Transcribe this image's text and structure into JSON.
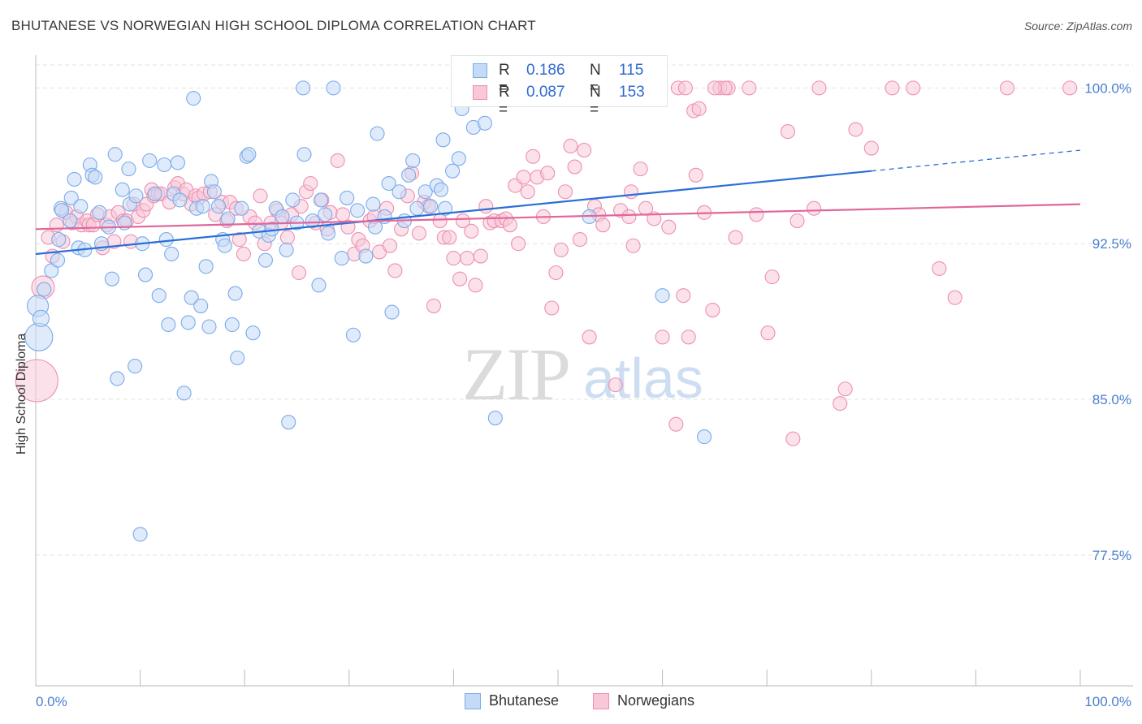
{
  "title": "BHUTANESE VS NORWEGIAN HIGH SCHOOL DIPLOMA CORRELATION CHART",
  "source": "Source: ZipAtlas.com",
  "watermark": {
    "zip": "ZIP",
    "atlas": "atlas"
  },
  "stats": [
    {
      "r_label": "R =",
      "r_value": "0.186",
      "n_label": "N =",
      "n_value": "115",
      "color": "#7aabea",
      "fill": "#c5daf5"
    },
    {
      "r_label": "R =",
      "r_value": "0.087",
      "n_label": "N =",
      "n_value": "153",
      "color": "#ee8fb0",
      "fill": "#f8c8d8"
    }
  ],
  "legend": [
    {
      "label": "Bhutanese",
      "color": "#7aabea",
      "fill": "#c5daf5"
    },
    {
      "label": "Norwegians",
      "color": "#ee8fb0",
      "fill": "#f8c8d8"
    }
  ],
  "chart_data": {
    "type": "scatter",
    "title": "BHUTANESE VS NORWEGIAN HIGH SCHOOL DIPLOMA CORRELATION CHART",
    "xlabel": "",
    "ylabel": "High School Diploma",
    "xlim": [
      0,
      100
    ],
    "ylim": [
      71.2,
      101.5
    ],
    "x_tick_labels": [
      "0.0%",
      "100.0%"
    ],
    "y_ticks": [
      77.5,
      85.0,
      92.5,
      100.0
    ],
    "y_tick_labels": [
      "77.5%",
      "85.0%",
      "92.5%",
      "100.0%"
    ],
    "grid": true,
    "legend_position": "bottom-center",
    "series": [
      {
        "name": "Bhutanese",
        "color": "#2b6fd6",
        "marker_fill": "#c5daf5",
        "marker_stroke": "#7aabea",
        "trend": {
          "x0": 0,
          "y0": 92.0,
          "x1": 80,
          "y1": 96.0,
          "dashed_to_x": 100,
          "dashed_to_y": 97.0
        },
        "points": [
          [
            0.2,
            89.5
          ],
          [
            0.3,
            88.0
          ],
          [
            0.5,
            88.9
          ],
          [
            0.8,
            90.3
          ],
          [
            1.5,
            91.2
          ],
          [
            2.1,
            91.7
          ],
          [
            2.2,
            92.7
          ],
          [
            2.4,
            94.2
          ],
          [
            2.5,
            94.1
          ],
          [
            3.3,
            93.6
          ],
          [
            3.4,
            94.7
          ],
          [
            3.7,
            95.6
          ],
          [
            4.1,
            92.3
          ],
          [
            4.3,
            94.3
          ],
          [
            4.7,
            92.2
          ],
          [
            5.2,
            96.3
          ],
          [
            5.4,
            95.8
          ],
          [
            5.7,
            95.7
          ],
          [
            6.1,
            94.0
          ],
          [
            6.3,
            92.5
          ],
          [
            7.0,
            93.3
          ],
          [
            7.3,
            90.8
          ],
          [
            7.6,
            96.8
          ],
          [
            7.8,
            86.0
          ],
          [
            8.3,
            95.1
          ],
          [
            8.9,
            96.1
          ],
          [
            8.5,
            93.5
          ],
          [
            9.0,
            94.4
          ],
          [
            9.6,
            94.8
          ],
          [
            10.0,
            78.5
          ],
          [
            9.5,
            86.6
          ],
          [
            10.2,
            92.5
          ],
          [
            10.5,
            91.0
          ],
          [
            10.9,
            96.5
          ],
          [
            11.4,
            94.9
          ],
          [
            11.8,
            90.0
          ],
          [
            12.3,
            96.3
          ],
          [
            12.5,
            92.7
          ],
          [
            12.7,
            88.6
          ],
          [
            13.0,
            92.0
          ],
          [
            13.2,
            94.9
          ],
          [
            13.6,
            96.4
          ],
          [
            13.8,
            94.6
          ],
          [
            14.2,
            85.3
          ],
          [
            14.6,
            88.7
          ],
          [
            14.9,
            89.9
          ],
          [
            15.1,
            99.5
          ],
          [
            15.4,
            94.2
          ],
          [
            15.8,
            89.5
          ],
          [
            16.0,
            94.3
          ],
          [
            16.3,
            91.4
          ],
          [
            16.6,
            88.5
          ],
          [
            16.8,
            95.5
          ],
          [
            17.1,
            95.0
          ],
          [
            17.5,
            94.3
          ],
          [
            17.9,
            92.7
          ],
          [
            18.1,
            92.4
          ],
          [
            18.4,
            93.7
          ],
          [
            18.8,
            88.6
          ],
          [
            19.1,
            90.1
          ],
          [
            19.3,
            87.0
          ],
          [
            19.7,
            94.2
          ],
          [
            20.2,
            96.7
          ],
          [
            20.4,
            96.8
          ],
          [
            20.8,
            88.2
          ],
          [
            21.4,
            93.1
          ],
          [
            22.0,
            91.7
          ],
          [
            22.3,
            92.9
          ],
          [
            22.6,
            93.2
          ],
          [
            23.0,
            94.2
          ],
          [
            23.6,
            93.8
          ],
          [
            24.0,
            92.2
          ],
          [
            24.2,
            83.9
          ],
          [
            24.6,
            94.6
          ],
          [
            25.0,
            93.5
          ],
          [
            25.6,
            100.0
          ],
          [
            25.7,
            96.8
          ],
          [
            26.5,
            93.6
          ],
          [
            27.3,
            94.6
          ],
          [
            27.1,
            90.5
          ],
          [
            27.7,
            93.9
          ],
          [
            28.0,
            93.0
          ],
          [
            28.5,
            100.0
          ],
          [
            29.3,
            91.8
          ],
          [
            29.8,
            94.7
          ],
          [
            30.4,
            88.1
          ],
          [
            30.8,
            94.1
          ],
          [
            31.6,
            91.9
          ],
          [
            32.3,
            94.4
          ],
          [
            32.5,
            93.3
          ],
          [
            32.7,
            97.8
          ],
          [
            33.4,
            93.8
          ],
          [
            33.8,
            95.4
          ],
          [
            34.1,
            89.2
          ],
          [
            34.8,
            95.0
          ],
          [
            35.3,
            93.6
          ],
          [
            36.1,
            96.5
          ],
          [
            35.7,
            95.8
          ],
          [
            36.5,
            94.2
          ],
          [
            37.3,
            95.0
          ],
          [
            37.8,
            94.3
          ],
          [
            38.4,
            95.3
          ],
          [
            38.8,
            95.1
          ],
          [
            39.0,
            97.5
          ],
          [
            39.2,
            94.2
          ],
          [
            39.9,
            96.0
          ],
          [
            40.5,
            96.6
          ],
          [
            40.8,
            99.0
          ],
          [
            41.9,
            98.1
          ],
          [
            42.0,
            100.0
          ],
          [
            43.0,
            98.3
          ],
          [
            44.0,
            100.0
          ],
          [
            44.0,
            84.1
          ],
          [
            53.0,
            93.8
          ],
          [
            60.0,
            90.0
          ],
          [
            64.0,
            83.2
          ]
        ]
      },
      {
        "name": "Norwegians",
        "color": "#e0679a",
        "marker_fill": "#f8c8d8",
        "marker_stroke": "#ee8fb0",
        "trend": {
          "x0": 0,
          "y0": 93.2,
          "x1": 100,
          "y1": 94.4
        },
        "points": [
          [
            0.1,
            85.9
          ],
          [
            0.7,
            90.4
          ],
          [
            1.2,
            92.8
          ],
          [
            1.6,
            91.9
          ],
          [
            2.0,
            93.4
          ],
          [
            2.6,
            92.6
          ],
          [
            2.9,
            94.0
          ],
          [
            3.5,
            93.5
          ],
          [
            3.9,
            93.8
          ],
          [
            4.4,
            93.4
          ],
          [
            4.9,
            93.6
          ],
          [
            5.1,
            93.4
          ],
          [
            5.5,
            93.4
          ],
          [
            5.9,
            93.9
          ],
          [
            6.4,
            92.3
          ],
          [
            6.8,
            93.4
          ],
          [
            7.1,
            93.8
          ],
          [
            7.5,
            92.6
          ],
          [
            7.9,
            94.0
          ],
          [
            8.4,
            93.6
          ],
          [
            8.7,
            93.6
          ],
          [
            9.1,
            92.6
          ],
          [
            9.4,
            94.4
          ],
          [
            9.8,
            93.8
          ],
          [
            10.3,
            94.1
          ],
          [
            10.6,
            94.4
          ],
          [
            11.1,
            95.1
          ],
          [
            11.3,
            94.8
          ],
          [
            11.7,
            94.9
          ],
          [
            12.0,
            94.9
          ],
          [
            12.8,
            94.5
          ],
          [
            13.3,
            95.2
          ],
          [
            13.6,
            95.4
          ],
          [
            14.1,
            94.9
          ],
          [
            14.4,
            95.1
          ],
          [
            14.9,
            94.4
          ],
          [
            15.3,
            94.8
          ],
          [
            15.6,
            94.7
          ],
          [
            16.1,
            94.9
          ],
          [
            16.7,
            95.0
          ],
          [
            17.2,
            93.9
          ],
          [
            17.8,
            94.5
          ],
          [
            18.3,
            93.6
          ],
          [
            18.6,
            94.5
          ],
          [
            19.2,
            94.2
          ],
          [
            19.5,
            92.7
          ],
          [
            19.9,
            92.0
          ],
          [
            20.5,
            93.8
          ],
          [
            21.0,
            93.5
          ],
          [
            21.5,
            94.8
          ],
          [
            21.9,
            92.5
          ],
          [
            22.5,
            93.5
          ],
          [
            23.1,
            94.1
          ],
          [
            23.5,
            93.5
          ],
          [
            24.1,
            92.8
          ],
          [
            24.5,
            93.9
          ],
          [
            25.2,
            91.1
          ],
          [
            25.4,
            94.3
          ],
          [
            25.9,
            95.0
          ],
          [
            26.3,
            95.4
          ],
          [
            26.8,
            93.5
          ],
          [
            27.4,
            94.6
          ],
          [
            27.9,
            93.2
          ],
          [
            28.2,
            94.0
          ],
          [
            28.9,
            96.5
          ],
          [
            29.4,
            93.9
          ],
          [
            29.9,
            93.3
          ],
          [
            30.5,
            92.0
          ],
          [
            30.9,
            92.7
          ],
          [
            31.3,
            92.4
          ],
          [
            32.0,
            93.6
          ],
          [
            32.4,
            93.8
          ],
          [
            32.9,
            92.1
          ],
          [
            33.6,
            94.2
          ],
          [
            33.9,
            92.4
          ],
          [
            34.4,
            91.2
          ],
          [
            35.0,
            93.2
          ],
          [
            35.6,
            94.8
          ],
          [
            36.0,
            95.9
          ],
          [
            36.7,
            93.0
          ],
          [
            37.2,
            94.5
          ],
          [
            37.6,
            94.3
          ],
          [
            38.1,
            89.5
          ],
          [
            38.7,
            93.6
          ],
          [
            39.1,
            92.8
          ],
          [
            39.6,
            92.8
          ],
          [
            40.0,
            91.8
          ],
          [
            40.6,
            90.8
          ],
          [
            40.9,
            93.6
          ],
          [
            41.3,
            91.8
          ],
          [
            41.7,
            93.1
          ],
          [
            42.1,
            90.5
          ],
          [
            42.6,
            91.9
          ],
          [
            43.1,
            94.3
          ],
          [
            43.5,
            93.5
          ],
          [
            43.9,
            93.6
          ],
          [
            44.6,
            93.6
          ],
          [
            45.0,
            93.7
          ],
          [
            45.4,
            93.4
          ],
          [
            45.9,
            95.3
          ],
          [
            46.2,
            92.5
          ],
          [
            46.7,
            95.7
          ],
          [
            47.1,
            95.0
          ],
          [
            47.6,
            96.7
          ],
          [
            48.0,
            95.7
          ],
          [
            48.6,
            93.8
          ],
          [
            49.0,
            95.9
          ],
          [
            49.4,
            89.4
          ],
          [
            49.8,
            91.1
          ],
          [
            50.3,
            92.2
          ],
          [
            50.7,
            95.0
          ],
          [
            51.2,
            97.2
          ],
          [
            51.6,
            96.2
          ],
          [
            52.1,
            92.7
          ],
          [
            52.5,
            97.0
          ],
          [
            53.0,
            88.0
          ],
          [
            53.5,
            94.3
          ],
          [
            53.9,
            93.9
          ],
          [
            54.3,
            93.4
          ],
          [
            55.5,
            85.7
          ],
          [
            56.0,
            94.1
          ],
          [
            56.8,
            93.8
          ],
          [
            57.2,
            92.4
          ],
          [
            57.9,
            96.1
          ],
          [
            58.4,
            94.2
          ],
          [
            59.2,
            93.7
          ],
          [
            60.0,
            88.0
          ],
          [
            60.6,
            93.3
          ],
          [
            61.3,
            83.8
          ],
          [
            62.0,
            90.0
          ],
          [
            62.5,
            88.0
          ],
          [
            63.2,
            95.8
          ],
          [
            64.0,
            94.0
          ],
          [
            64.8,
            89.3
          ],
          [
            65.5,
            100.0
          ],
          [
            66.3,
            100.0
          ],
          [
            67.0,
            92.8
          ],
          [
            68.3,
            100.0
          ],
          [
            69.0,
            93.9
          ],
          [
            70.1,
            88.2
          ],
          [
            72.0,
            97.9
          ],
          [
            72.5,
            83.1
          ],
          [
            72.9,
            93.6
          ],
          [
            75.0,
            100.0
          ],
          [
            77.0,
            84.8
          ],
          [
            78.5,
            98.0
          ],
          [
            80.0,
            97.1
          ],
          [
            82.0,
            100.0
          ],
          [
            84.0,
            100.0
          ],
          [
            86.5,
            91.3
          ],
          [
            88.0,
            89.9
          ],
          [
            93.0,
            100.0
          ],
          [
            99.0,
            100.0
          ],
          [
            63.0,
            98.9
          ],
          [
            77.5,
            85.5
          ],
          [
            70.5,
            90.9
          ],
          [
            58.6,
            100.0
          ],
          [
            57.0,
            95.0
          ],
          [
            63.5,
            99.0
          ],
          [
            52.8,
            100.0
          ],
          [
            55.0,
            100.0
          ],
          [
            61.5,
            100.0
          ],
          [
            62.2,
            100.0
          ],
          [
            66.0,
            100.0
          ],
          [
            65.0,
            100.0
          ],
          [
            74.5,
            94.2
          ]
        ]
      }
    ]
  }
}
